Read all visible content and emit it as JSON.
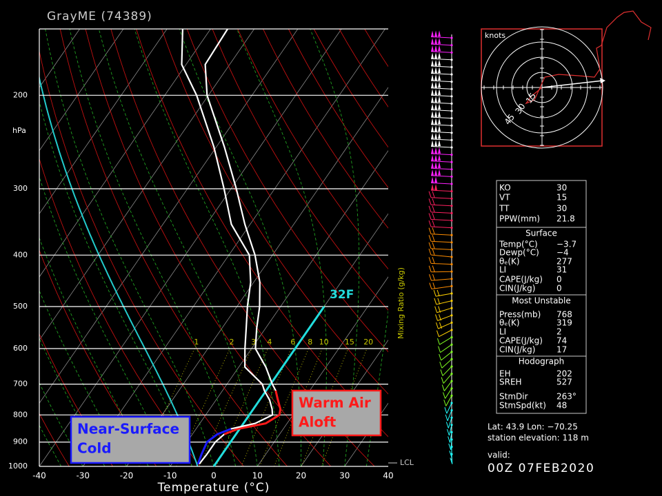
{
  "chart_data": {
    "type": "skewt",
    "title": "GrayME (74389)",
    "ylabel": "hPa",
    "xlabel": "Temperature (°C)",
    "xlim": [
      -40,
      40
    ],
    "xticks": [
      -40,
      -30,
      -20,
      -10,
      0,
      10,
      20,
      30,
      40
    ],
    "ylim": [
      1000,
      150
    ],
    "yticks": [
      1000,
      900,
      800,
      700,
      600,
      500,
      400,
      300,
      200
    ],
    "log_y": true,
    "pressure": [
      990,
      950,
      900,
      870,
      850,
      830,
      800,
      780,
      750,
      720,
      700,
      650,
      600,
      550,
      500,
      450,
      400,
      350,
      300,
      250,
      200,
      175,
      150
    ],
    "series": [
      {
        "color": "#ffffff",
        "highlight": {
          "color": "#ff1a1a",
          "range": [
            870,
            720
          ]
        },
        "values": [
          -3.7,
          -3.5,
          -3.5,
          -2.7,
          -0.4,
          5.1,
          6.9,
          6.2,
          4.2,
          2.2,
          0.4,
          -3.8,
          -9.1,
          -12,
          -14.8,
          -18.6,
          -24,
          -31.2,
          -38.8,
          -48.2,
          -60.3,
          -65.6,
          -66.1
        ]
      },
      {
        "color": "#ffffff",
        "highlight": {
          "color": "#1a1aff",
          "range": [
            990,
            850
          ]
        },
        "values": [
          -4,
          -4.7,
          -5.4,
          -4.3,
          -2,
          2.7,
          5.3,
          4.3,
          2.3,
          -0.4,
          -1.9,
          -8.6,
          -11.5,
          -14.4,
          -17.6,
          -20.7,
          -25.3,
          -34.3,
          -41.6,
          -50.6,
          -62.7,
          -71,
          -76.4
        ]
      }
    ],
    "mixing_ratio": {
      "label": "Mixing Ratio (g/kg)",
      "values": [
        1,
        2,
        3,
        4,
        6,
        8,
        10,
        15,
        20
      ],
      "color": "#c8c800"
    },
    "isotherm_annotation": {
      "label": "32F",
      "value": 0,
      "top": 500,
      "color": "#22dddd"
    },
    "lcl_label": "LCL",
    "callouts": [
      {
        "lines": [
          "Warm Air",
          "Aloft"
        ],
        "color": "#ff1a1a"
      },
      {
        "lines": [
          "Near-Surface",
          "Cold"
        ],
        "color": "#1a1aff"
      }
    ]
  },
  "hodograph": {
    "label": "knots",
    "rings": [
      15,
      30,
      45
    ]
  },
  "stats": {
    "top": [
      [
        "KO",
        "30"
      ],
      [
        "VT",
        "15"
      ],
      [
        "TT",
        "30"
      ],
      [
        "PPW(mm)",
        "21.8"
      ]
    ],
    "sections": [
      {
        "title": "Surface",
        "rows": [
          [
            "Temp(°C)",
            "−3.7"
          ],
          [
            "Dewp(°C)",
            "−4"
          ],
          [
            "θₑ(K)",
            "277"
          ],
          [
            "LI",
            "31"
          ],
          [
            "CAPE(J/kg)",
            "0"
          ],
          [
            "CIN(J/kg)",
            "0"
          ]
        ]
      },
      {
        "title": "Most Unstable",
        "rows": [
          [
            "Press(mb)",
            "768"
          ],
          [
            "θₑ(K)",
            "319"
          ],
          [
            "LI",
            "2"
          ],
          [
            "CAPE(J/kg)",
            "74"
          ],
          [
            "CIN(J/kg)",
            "17"
          ]
        ]
      },
      {
        "title": "Hodograph",
        "rows": [
          [
            "EH",
            "202"
          ],
          [
            "SREH",
            "527"
          ],
          [
            "StmDir",
            "263°"
          ],
          [
            "StmSpd(kt)",
            "48"
          ]
        ]
      }
    ]
  },
  "station": {
    "location": "Lat: 43.9 Lon: −70.25",
    "elevation": "station elevation: 118 m",
    "valid_label": "valid:",
    "valid": "00Z 07FEB2020"
  }
}
